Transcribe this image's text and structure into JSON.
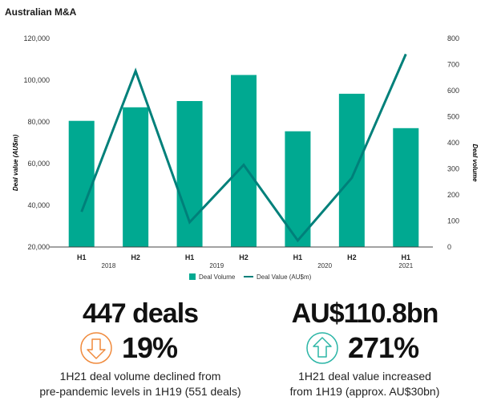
{
  "title": "Australian M&A",
  "chart_data": {
    "type": "bar+line",
    "categories": [
      "H1",
      "H2",
      "H1",
      "H2",
      "H1",
      "H2",
      "H1"
    ],
    "years": [
      {
        "label": "2018",
        "span": [
          0,
          1
        ]
      },
      {
        "label": "2019",
        "span": [
          2,
          3
        ]
      },
      {
        "label": "2020",
        "span": [
          4,
          5
        ]
      },
      {
        "label": "2021",
        "span": [
          6,
          6
        ]
      }
    ],
    "series": [
      {
        "name": "Deal Volume",
        "kind": "bar",
        "axis": "left",
        "color": "#00a991",
        "values": [
          80500,
          87000,
          90000,
          102500,
          75500,
          93500,
          77000
        ]
      },
      {
        "name": "Deal Value (AU$m)",
        "kind": "line",
        "axis": "right",
        "color": "#00807a",
        "values": [
          135,
          675,
          95,
          315,
          25,
          265,
          740
        ]
      }
    ],
    "left_axis": {
      "label": "Deal value (AU$m)",
      "ylim": [
        20000,
        120000
      ],
      "ticks": [
        "20,000",
        "40,000",
        "60,000",
        "80,000",
        "100,000",
        "120,000"
      ]
    },
    "right_axis": {
      "label": "Deal volume",
      "ylim": [
        0,
        800
      ],
      "ticks": [
        "0",
        "100",
        "200",
        "300",
        "400",
        "500",
        "600",
        "700",
        "800"
      ]
    },
    "grid": false,
    "legend_position": "bottom-center"
  },
  "stats": {
    "left": {
      "headline": "447 deals",
      "direction": "down",
      "percent": "19%",
      "line1": "1H21 deal volume declined from",
      "line2": "pre-pandemic levels in 1H19 (551 deals)"
    },
    "right": {
      "headline": "AU$110.8bn",
      "direction": "up",
      "percent": "271%",
      "line1": "1H21 deal value increased",
      "line2": "from 1H19 (approx. AU$30bn)"
    }
  },
  "colors": {
    "down_arrow": "#f08a3c",
    "up_arrow": "#2bb5a6"
  }
}
